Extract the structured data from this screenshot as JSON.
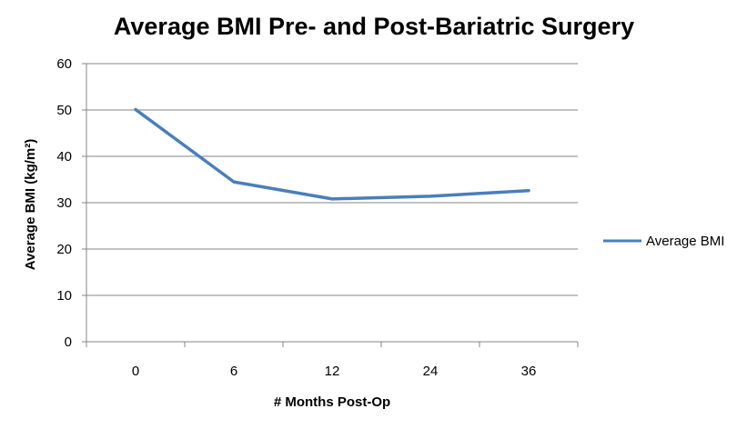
{
  "chart_data": {
    "type": "line",
    "title": "Average BMI Pre- and Post-Bariatric Surgery",
    "xlabel": "# Months Post-Op",
    "ylabel": "Average BMI (kg/m²)",
    "categories": [
      "0",
      "6",
      "12",
      "24",
      "36"
    ],
    "series": [
      {
        "name": "Average BMI",
        "values": [
          50.1,
          34.5,
          30.8,
          31.4,
          32.6
        ],
        "color": "#4a7ebb"
      }
    ],
    "ylim": [
      0,
      60
    ],
    "yticks": [
      0,
      10,
      20,
      30,
      40,
      50,
      60
    ],
    "grid": true,
    "legend": "right"
  }
}
